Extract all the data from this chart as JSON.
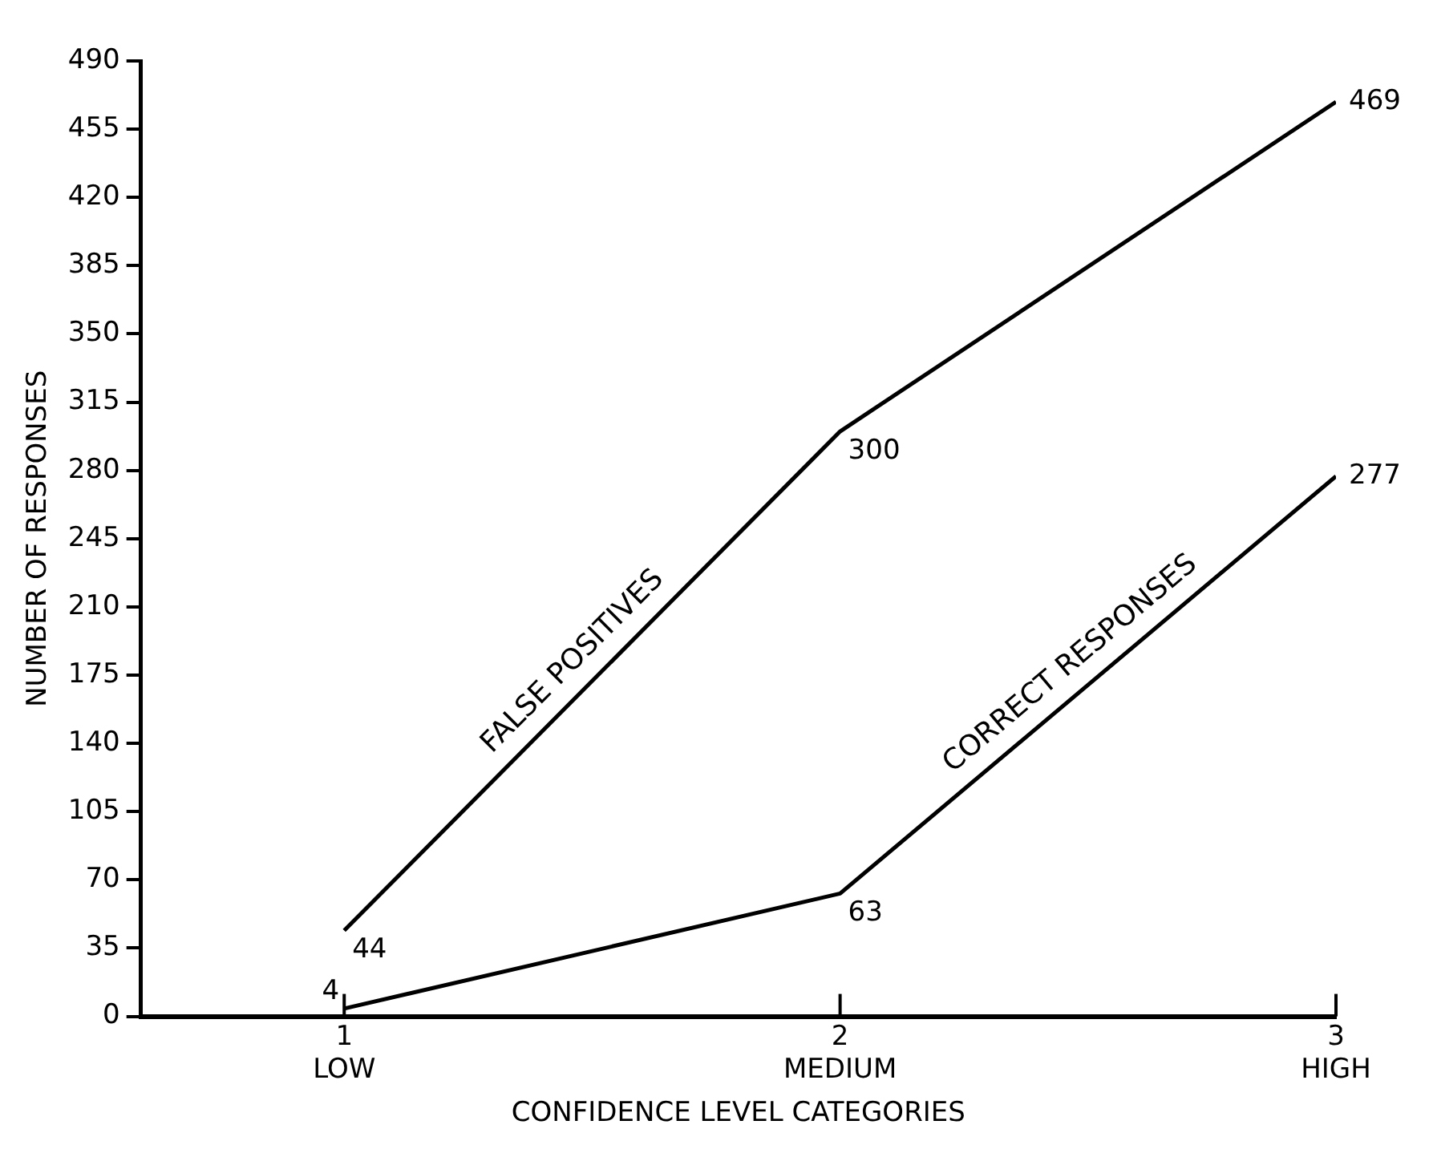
{
  "chart_data": {
    "type": "line",
    "xlabel": "CONFIDENCE LEVEL CATEGORIES",
    "ylabel": "NUMBER OF RESPONSES",
    "x": [
      1,
      2,
      3
    ],
    "series": [
      {
        "name": "FALSE POSITIVES",
        "color": "#000000",
        "values": [
          44,
          300,
          469
        ]
      },
      {
        "name": "CORRECT RESPONSES",
        "color": "#000000",
        "values": [
          4,
          63,
          277
        ]
      }
    ],
    "xlim": [
      0.59,
      3
    ],
    "xticks": [
      {
        "value": 1,
        "label": "1\nLOW"
      },
      {
        "value": 2,
        "label": "2\nMEDIUM"
      },
      {
        "value": 3,
        "label": "3\nHIGH"
      }
    ],
    "ylim": [
      0,
      490
    ],
    "yticks": [
      0,
      35,
      70,
      105,
      140,
      175,
      210,
      245,
      280,
      315,
      350,
      385,
      420,
      455,
      490
    ],
    "grid": false,
    "legend": false,
    "marker": "none",
    "line_style": "solid",
    "data_labels": true
  }
}
